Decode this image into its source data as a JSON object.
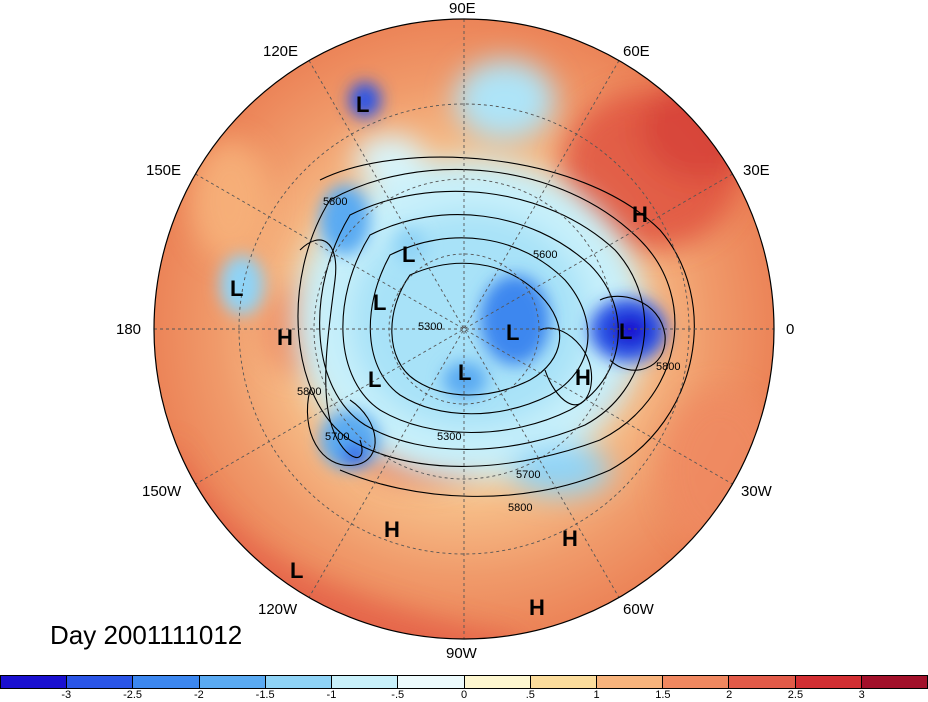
{
  "title": "Day 2001111012",
  "longitude_labels": [
    "90E",
    "60E",
    "30E",
    "0",
    "30W",
    "60W",
    "90W",
    "120W",
    "150W",
    "180",
    "150E",
    "120E"
  ],
  "contour_labels": [
    "5800",
    "5600",
    "5300",
    "5800",
    "5700",
    "5300",
    "5700",
    "5800",
    "5800"
  ],
  "pressure_centers": [
    {
      "type": "L"
    },
    {
      "type": "H"
    },
    {
      "type": "L"
    },
    {
      "type": "L"
    },
    {
      "type": "L"
    },
    {
      "type": "H"
    },
    {
      "type": "L"
    },
    {
      "type": "L"
    },
    {
      "type": "L"
    },
    {
      "type": "L"
    },
    {
      "type": "H"
    },
    {
      "type": "H"
    },
    {
      "type": "H"
    },
    {
      "type": "L"
    },
    {
      "type": "H"
    }
  ],
  "colorbar": {
    "colors": [
      "#1a10d0",
      "#2a55e6",
      "#3c87ef",
      "#5aaaf2",
      "#8fd3f6",
      "#c8f0fa",
      "#ecfafc",
      "#fdf6cf",
      "#fbdc9c",
      "#f7b37c",
      "#f08860",
      "#e25a48",
      "#d22e32",
      "#a2102a"
    ],
    "labels": [
      "-3",
      "-2.5",
      "-2",
      "-1.5",
      "-1",
      "-.5",
      "0",
      ".5",
      "1",
      "1.5",
      "2",
      "2.5",
      "3"
    ]
  }
}
